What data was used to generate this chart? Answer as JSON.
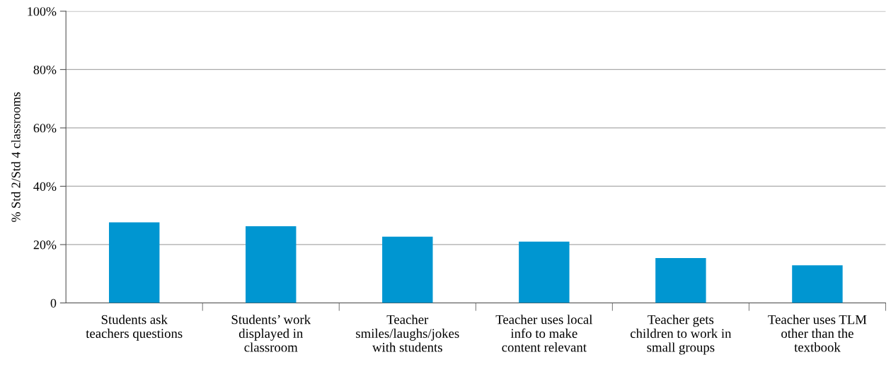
{
  "chart_data": {
    "type": "bar",
    "ylabel": "% Std 2/Std 4 classrooms",
    "categories": [
      "Students ask\nteachers questions",
      "Students’ work\ndisplayed in\nclassroom",
      "Teacher\nsmiles/laughs/jokes\nwith students",
      "Teacher uses local\ninfo to make\ncontent relevant",
      "Teacher gets\nchildren to work in\nsmall groups",
      "Teacher uses TLM\nother than the\ntextbook"
    ],
    "values": [
      27.6,
      26.3,
      22.7,
      21.0,
      15.4,
      12.9
    ],
    "color": "#0096d1",
    "ylim": [
      0,
      100
    ],
    "yticks": [
      {
        "value": 0,
        "label": "0"
      },
      {
        "value": 20,
        "label": "20%"
      },
      {
        "value": 40,
        "label": "40%"
      },
      {
        "value": 60,
        "label": "60%"
      },
      {
        "value": 80,
        "label": "80%"
      },
      {
        "value": 100,
        "label": "100%"
      }
    ],
    "grid": "y",
    "legend": false
  }
}
